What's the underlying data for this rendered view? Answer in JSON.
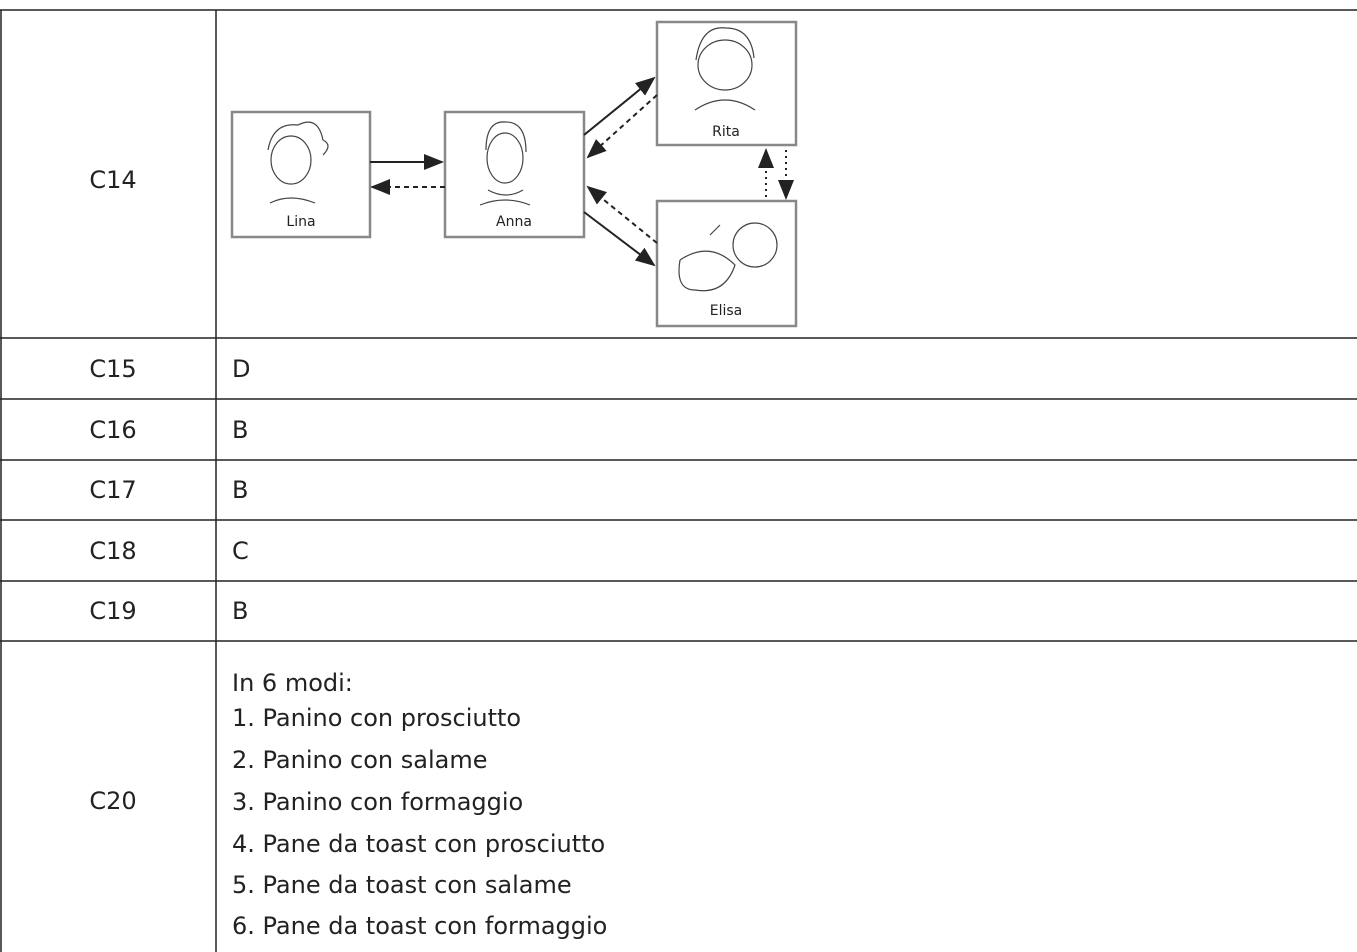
{
  "table": {
    "rows": [
      {
        "id": "C14",
        "diagram": {
          "nodes": [
            {
              "label": "Lina"
            },
            {
              "label": "Anna"
            },
            {
              "label": "Rita"
            },
            {
              "label": "Elisa"
            }
          ]
        }
      },
      {
        "id": "C15",
        "answer": "D"
      },
      {
        "id": "C16",
        "answer": "B"
      },
      {
        "id": "C17",
        "answer": "B"
      },
      {
        "id": "C18",
        "answer": "C"
      },
      {
        "id": "C19",
        "answer": "B"
      },
      {
        "id": "C20",
        "answer_lines": [
          "In 6 modi:",
          "1. Panino con prosciutto",
          "2. Panino con salame",
          "3. Panino con formaggio",
          "4. Pane da toast con prosciutto",
          "5. Pane da toast con salame",
          "6. Pane da toast con formaggio"
        ]
      }
    ]
  }
}
